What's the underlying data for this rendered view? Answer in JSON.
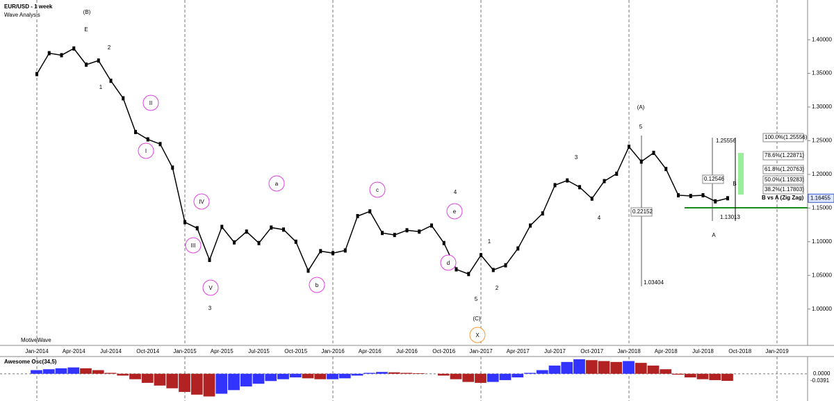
{
  "chart_data": [
    {
      "type": "line",
      "title": "EUR/USD - 1 week",
      "subtitle": "Wave Analysis",
      "color": "#000000",
      "categories": [
        "Jan-2014",
        null,
        null,
        "Apr-2014",
        null,
        null,
        "Jul-2014",
        null,
        null,
        "Oct-2014",
        null,
        null,
        "Jan-2015",
        null,
        null,
        "Apr-2015",
        null,
        null,
        "Jul-2015",
        null,
        null,
        "Oct-2015",
        null,
        null,
        "Jan-2016",
        null,
        null,
        "Apr-2016",
        null,
        null,
        "Jul-2016",
        null,
        null,
        "Oct-2016",
        null,
        null,
        "Jan-2017",
        null,
        null,
        "Apr-2017",
        null,
        null,
        "Jul-2017",
        null,
        null,
        "Oct-2017",
        null,
        null,
        "Jan-2018",
        null,
        null,
        "Apr-2018",
        null,
        null,
        "Jul-2018",
        null,
        null,
        "Oct-2018",
        null,
        null,
        "Jan-2019"
      ],
      "values": [
        1.349,
        1.38,
        1.377,
        1.387,
        1.363,
        1.369,
        1.339,
        1.313,
        1.263,
        1.252,
        1.245,
        1.21,
        1.129,
        1.12,
        1.073,
        1.122,
        1.099,
        1.115,
        1.098,
        1.121,
        1.118,
        1.1,
        1.057,
        1.086,
        1.083,
        1.087,
        1.138,
        1.145,
        1.113,
        1.11,
        1.117,
        1.115,
        1.124,
        1.098,
        1.059,
        1.052,
        1.08,
        1.058,
        1.065,
        1.09,
        1.124,
        1.142,
        1.184,
        1.191,
        1.181,
        1.164,
        1.19,
        1.201,
        1.241,
        1.219,
        1.232,
        1.208,
        1.169,
        1.168,
        1.169,
        1.16,
        1.16455,
        null,
        null,
        null,
        null
      ],
      "last_label": "1.16455",
      "ylim": [
        0.946,
        1.459
      ],
      "yticks": [
        {
          "value": 1.0,
          "label": "1.00000"
        },
        {
          "value": 1.05,
          "label": "1.05000"
        },
        {
          "value": 1.1,
          "label": "1.10000"
        },
        {
          "value": 1.15,
          "label": "1.15000"
        },
        {
          "value": 1.2,
          "label": "1.20000"
        },
        {
          "value": 1.25,
          "label": "1.25000"
        },
        {
          "value": 1.3,
          "label": "1.30000"
        },
        {
          "value": 1.35,
          "label": "1.35000"
        },
        {
          "value": 1.4,
          "label": "1.40000"
        }
      ],
      "annotations": [
        "(B)",
        "E",
        "2",
        "1",
        "II",
        "I",
        "IV",
        "III",
        "V",
        "3",
        "a",
        "b",
        "c",
        "4",
        "e",
        "d",
        "1",
        "5",
        "2",
        "(C)",
        "X",
        "3",
        "4",
        "(A)",
        "5",
        "B",
        "A"
      ],
      "fib_labels": [
        "100.0%(1.25556)",
        "78.6%(1.22871)",
        "61.8%(1.20763)",
        "50.0%(1.19283)",
        "38.2%(1.17803)",
        "B vs A (Zig Zag)",
        "1.25556",
        "0.12546",
        "0.22152",
        "1.13013",
        "1.03404"
      ]
    },
    {
      "type": "osc",
      "title": "Awesome Osc(34,5)",
      "up_color": "#3333ff",
      "down_color": "#b22222",
      "values": [
        0.02,
        0.025,
        0.03,
        0.035,
        0.03,
        0.02,
        0.005,
        -0.01,
        -0.03,
        -0.05,
        -0.065,
        -0.08,
        -0.1,
        -0.115,
        -0.125,
        -0.11,
        -0.09,
        -0.07,
        -0.055,
        -0.04,
        -0.03,
        -0.02,
        -0.025,
        -0.03,
        -0.03,
        -0.025,
        -0.01,
        0.005,
        0.01,
        0.008,
        0.005,
        0.003,
        0,
        -0.01,
        -0.03,
        -0.045,
        -0.05,
        -0.045,
        -0.035,
        -0.02,
        0.005,
        0.02,
        0.045,
        0.065,
        0.08,
        0.075,
        0.07,
        0.065,
        0.07,
        0.06,
        0.045,
        0.025,
        -0.005,
        -0.02,
        -0.03,
        -0.035,
        -0.0391,
        null,
        null,
        null,
        null
      ],
      "last_label": "-0.0391",
      "ylim": [
        -0.15,
        0.095
      ],
      "yticks": [
        {
          "value": 0,
          "label": "0.0000"
        }
      ]
    }
  ],
  "brand": "MotiveWave"
}
